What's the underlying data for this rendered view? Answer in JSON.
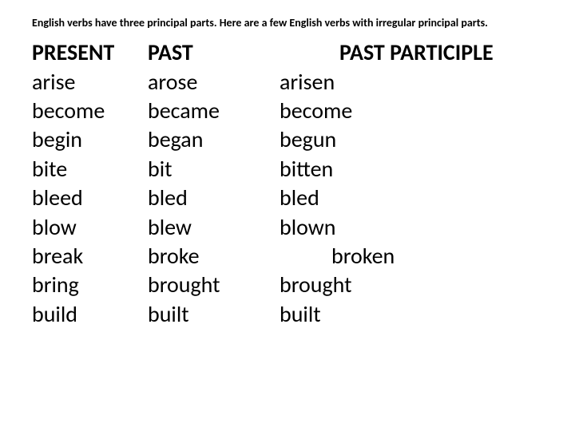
{
  "intro": "English verbs have three principal parts. Here are a few English verbs with irregular principal parts.",
  "columns": {
    "present": {
      "header": "PRESENT",
      "rows": [
        "arise",
        "become",
        "begin",
        "bite",
        "bleed",
        "blow",
        "break",
        "bring",
        "build"
      ]
    },
    "past": {
      "header": "PAST",
      "rows": [
        "arose",
        "became",
        "began",
        "bit",
        "bled",
        "blew",
        "broke",
        "brought",
        "built"
      ]
    },
    "participle": {
      "header": "PAST   PARTICIPLE",
      "rows": [
        "arisen",
        "become",
        "begun",
        "bitten",
        "bled",
        "blown",
        "broken",
        "brought",
        "built"
      ]
    }
  },
  "styling": {
    "intro_fontsize": 14,
    "intro_fontweight": "bold",
    "table_fontsize": 28,
    "header_fontweight": "bold",
    "text_color": "#000000",
    "background_color": "#ffffff",
    "col_present_width": 145,
    "col_past_width": 165,
    "line_height": 1.3,
    "participle_header_indent": 75,
    "broken_indent": 65
  }
}
